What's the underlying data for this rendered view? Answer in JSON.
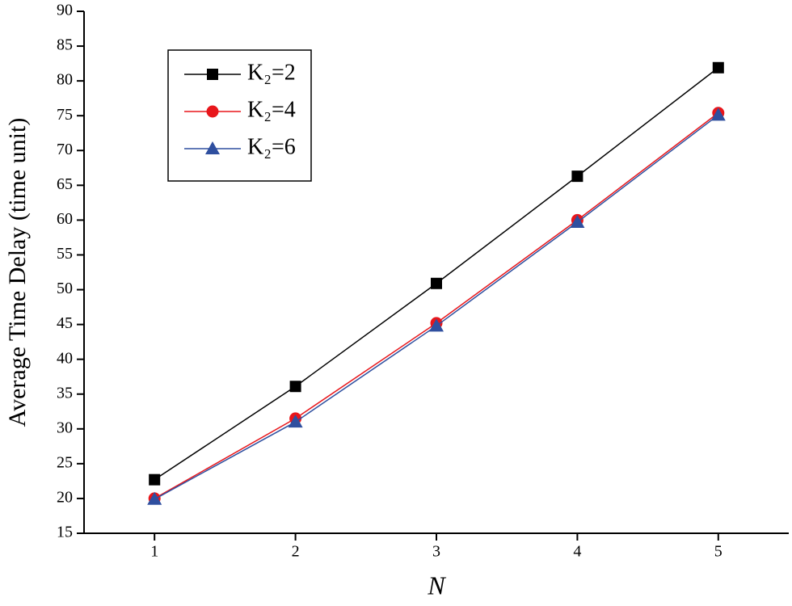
{
  "chart_data": {
    "type": "line",
    "x_label": "N",
    "y_label": "Average Time Delay (time unit)",
    "x": [
      1,
      2,
      3,
      4,
      5
    ],
    "series": [
      {
        "name": "K₂=2",
        "color": "#000000",
        "marker": "square",
        "values": [
          22.7,
          36.1,
          50.9,
          66.3,
          81.9
        ]
      },
      {
        "name": "K₂=4",
        "color": "#e8161b",
        "marker": "circle",
        "values": [
          20.0,
          31.5,
          45.2,
          60.0,
          75.4
        ]
      },
      {
        "name": "K₂=6",
        "color": "#2f4f9f",
        "marker": "triangle",
        "values": [
          19.9,
          31.0,
          44.8,
          59.7,
          75.1
        ]
      }
    ],
    "xlim": [
      0.5,
      5.5
    ],
    "xticks": [
      1,
      2,
      3,
      4,
      5
    ],
    "ylim": [
      15,
      90
    ],
    "yticks": [
      15,
      20,
      25,
      30,
      35,
      40,
      45,
      50,
      55,
      60,
      65,
      70,
      75,
      80,
      85,
      90
    ],
    "legend": "upper-left"
  }
}
